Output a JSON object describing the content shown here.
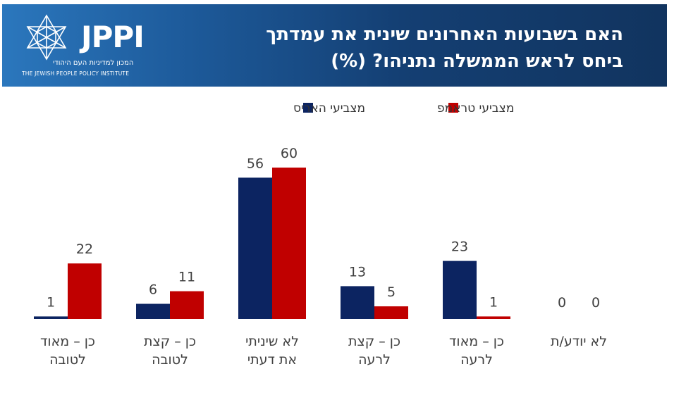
{
  "header": {
    "title_line1": "האם בשבועות האחרונים שינית את עמדתך",
    "title_line2": "ביחס לראש הממשלה נתניהו? (%)"
  },
  "logo": {
    "wordmark": "JPPI",
    "hebrew": "המכון למדיניות העם היהודי",
    "english": "THE JEWISH PEOPLE POLICY INSTITUTE",
    "icon": "star-of-david-icon"
  },
  "chart_data": {
    "type": "bar",
    "categories": [
      [
        "כן – מאוד",
        "לטובה"
      ],
      [
        "כן – קצת",
        "לטובה"
      ],
      [
        "לא שיניתי",
        "את דעתי"
      ],
      [
        "כן – קצת",
        "לרעה"
      ],
      [
        "כן – מאוד",
        "לרעה"
      ],
      [
        "לא יודע/ת"
      ]
    ],
    "series": [
      {
        "name": "מצביעי האריס",
        "color": "#0c2461",
        "values": [
          1,
          6,
          56,
          13,
          23,
          0
        ]
      },
      {
        "name": "מצביעי טראמפ",
        "color": "#c00000",
        "values": [
          22,
          11,
          60,
          5,
          1,
          0
        ]
      }
    ],
    "ylim": [
      0,
      60
    ],
    "grid": false,
    "legend": "top-right"
  }
}
